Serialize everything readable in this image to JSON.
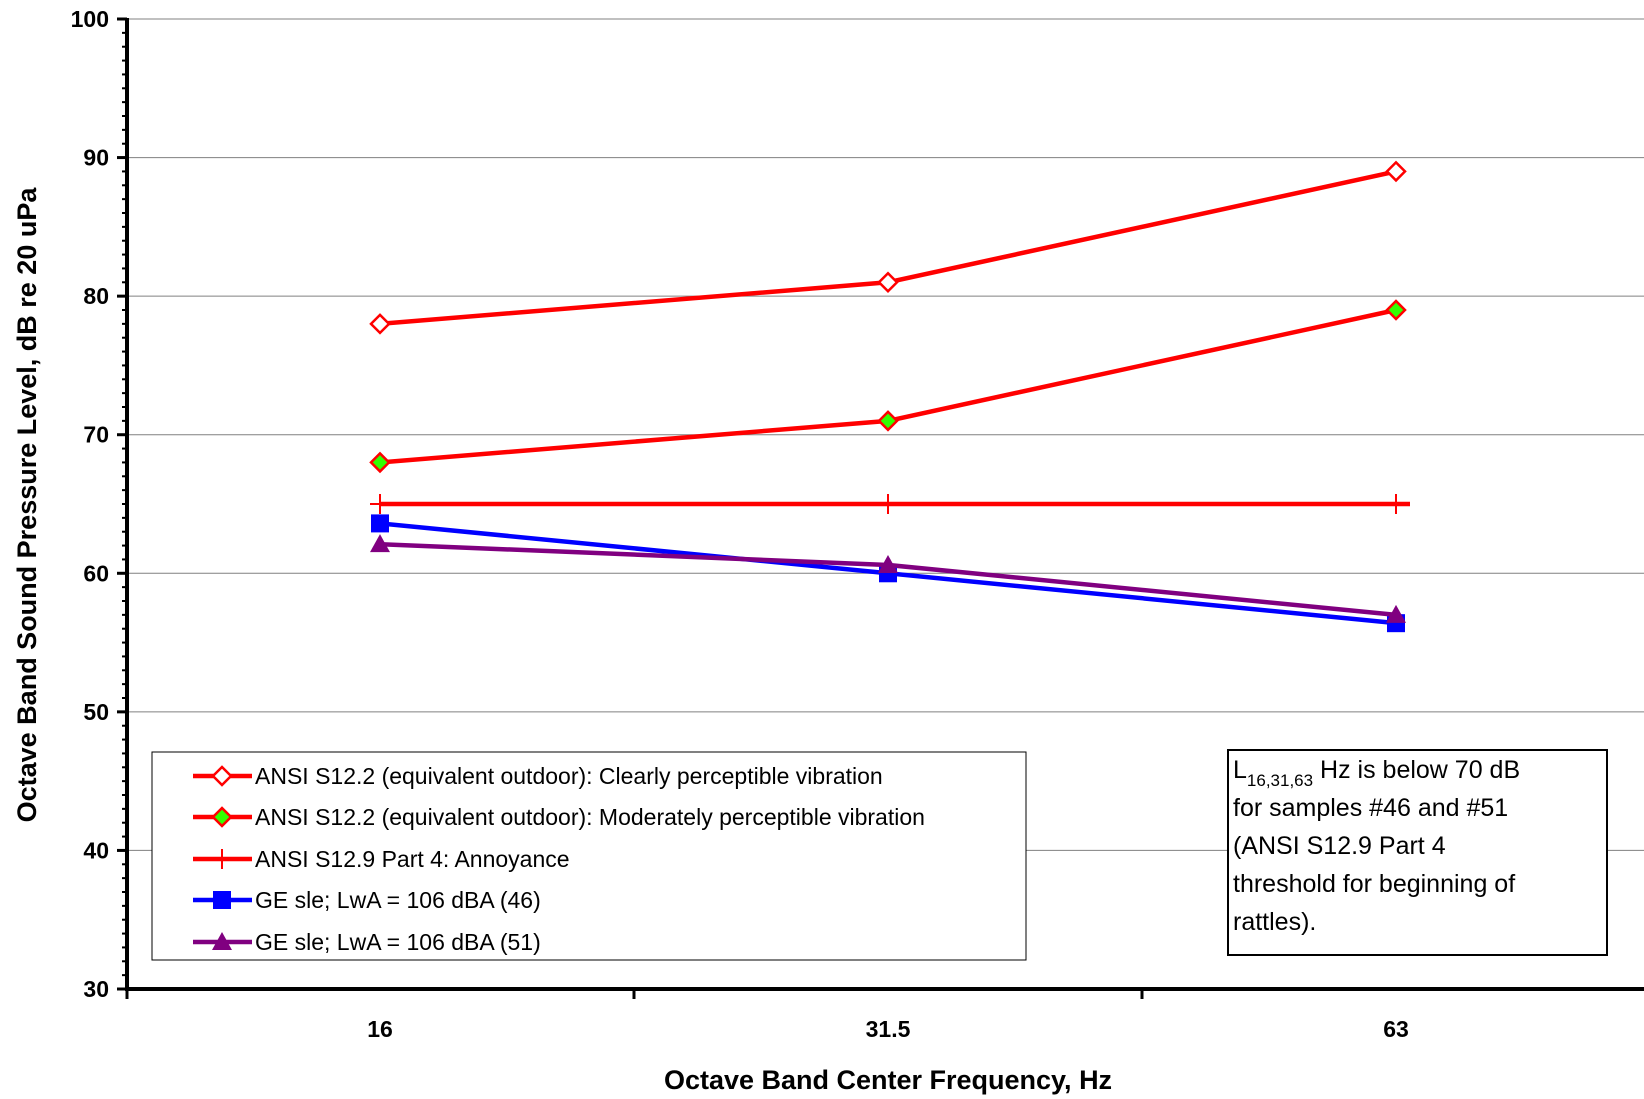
{
  "chart_data": {
    "type": "line",
    "xlabel": "Octave Band Center Frequency, Hz",
    "ylabel": "Octave Band Sound Pressure Level, dB re 20 uPa",
    "categories": [
      "16",
      "31.5",
      "63"
    ],
    "ylim": [
      30,
      100
    ],
    "yticks": [
      "30",
      "40",
      "50",
      "60",
      "70",
      "80",
      "90",
      "100"
    ],
    "grid": "horizontal",
    "legend_position": "bottom-left",
    "series": [
      {
        "name": "ANSI S12.2 (equivalent outdoor): Clearly perceptible vibration",
        "values": [
          78,
          81,
          89
        ],
        "color": "#ff0000",
        "marker": "diamond-open"
      },
      {
        "name": "ANSI S12.2 (equivalent outdoor): Moderately perceptible vibration",
        "values": [
          68,
          71,
          79
        ],
        "color": "#ff0000",
        "marker": "diamond-green",
        "marker_fill": "#33ff00"
      },
      {
        "name": "ANSI S12.9 Part 4: Annoyance",
        "values": [
          65,
          65,
          65
        ],
        "color": "#ff0000",
        "marker": "plus"
      },
      {
        "name": "GE sle; LwA = 106 dBA (46)",
        "values": [
          63.6,
          60,
          56.4
        ],
        "color": "#0000ff",
        "marker": "square"
      },
      {
        "name": "GE sle; LwA = 106 dBA (51)",
        "values": [
          62.1,
          60.6,
          57
        ],
        "color": "#800080",
        "marker": "triangle"
      }
    ],
    "annotation": {
      "prefix": "L",
      "subscript": "16,31,63",
      "line1_rest": " Hz is below 70 dB",
      "line2": "for samples #46 and #51",
      "line3": "(ANSI S12.9 Part 4",
      "line4": "threshold for beginning of",
      "line5": "rattles)."
    }
  }
}
